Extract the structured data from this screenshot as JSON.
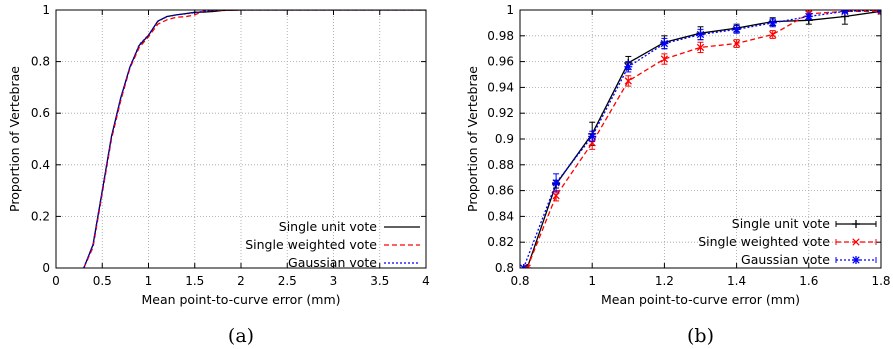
{
  "colors": {
    "unit": "#000000",
    "weighted": "#ff0000",
    "gaussian": "#0000ff",
    "grid": "#a0a0a0"
  },
  "chart_data": [
    {
      "type": "line",
      "caption": "(a)",
      "xlabel": "Mean point-to-curve error (mm)",
      "ylabel": "Proportion of Vertebrae",
      "xlim": [
        0,
        4
      ],
      "ylim": [
        0,
        1
      ],
      "xticks": [
        0,
        0.5,
        1,
        1.5,
        2,
        2.5,
        3,
        3.5,
        4
      ],
      "xtick_labels": [
        "0",
        "0.5",
        "1",
        "1.5",
        "2",
        "2.5",
        "3",
        "3.5",
        "4"
      ],
      "yticks": [
        0,
        0.2,
        0.4,
        0.6,
        0.8,
        1
      ],
      "ytick_labels": [
        "0",
        "0.2",
        "0.4",
        "0.6",
        "0.8",
        "1"
      ],
      "grid": true,
      "legend_position": "bottom-right",
      "series": [
        {
          "name": "Single unit vote",
          "color": "#000000",
          "dash": "solid",
          "x": [
            0.3,
            0.4,
            0.5,
            0.6,
            0.7,
            0.8,
            0.9,
            1.0,
            1.1,
            1.2,
            1.3,
            1.4,
            1.5,
            1.6,
            1.7,
            1.8,
            2.0,
            4.0
          ],
          "y": [
            0.0,
            0.09,
            0.3,
            0.51,
            0.66,
            0.78,
            0.863,
            0.902,
            0.957,
            0.975,
            0.981,
            0.986,
            0.991,
            0.992,
            0.994,
            0.998,
            1.0,
            1.0
          ]
        },
        {
          "name": "Single weighted vote",
          "color": "#ff0000",
          "dash": "dashed",
          "x": [
            0.3,
            0.4,
            0.5,
            0.6,
            0.7,
            0.8,
            0.9,
            1.0,
            1.1,
            1.2,
            1.3,
            1.4,
            1.5,
            1.6,
            1.7,
            1.8,
            2.0,
            4.0
          ],
          "y": [
            0.0,
            0.08,
            0.29,
            0.5,
            0.65,
            0.775,
            0.855,
            0.896,
            0.945,
            0.962,
            0.972,
            0.974,
            0.981,
            0.997,
            0.999,
            0.999,
            1.0,
            1.0
          ]
        },
        {
          "name": "Gaussian vote",
          "color": "#0000ff",
          "dash": "dotted",
          "x": [
            0.3,
            0.4,
            0.5,
            0.6,
            0.7,
            0.8,
            0.9,
            1.0,
            1.1,
            1.2,
            1.3,
            1.4,
            1.5,
            1.6,
            1.7,
            1.8,
            2.0,
            4.0
          ],
          "y": [
            0.0,
            0.09,
            0.3,
            0.51,
            0.66,
            0.78,
            0.866,
            0.903,
            0.956,
            0.974,
            0.981,
            0.985,
            0.99,
            0.995,
            0.999,
            1.0,
            1.0,
            1.0
          ]
        }
      ]
    },
    {
      "type": "line",
      "caption": "(b)",
      "xlabel": "Mean point-to-curve error (mm)",
      "ylabel": "Proportion of Vertebrae",
      "xlim": [
        0.8,
        1.8
      ],
      "ylim": [
        0.8,
        1.0
      ],
      "xticks": [
        0.8,
        1.0,
        1.2,
        1.4,
        1.6,
        1.8
      ],
      "xtick_labels": [
        "0.8",
        "1",
        "1.2",
        "1.4",
        "1.6",
        "1.8"
      ],
      "yticks": [
        0.8,
        0.82,
        0.84,
        0.86,
        0.88,
        0.9,
        0.92,
        0.94,
        0.96,
        0.98,
        1.0
      ],
      "ytick_labels": [
        "0.8",
        "0.82",
        "0.84",
        "0.86",
        "0.88",
        "0.9",
        "0.92",
        "0.94",
        "0.96",
        "0.98",
        "1"
      ],
      "grid": true,
      "legend_position": "bottom-right",
      "series": [
        {
          "name": "Single unit vote",
          "color": "#000000",
          "dash": "solid",
          "marker": "+",
          "x": [
            0.82,
            0.9,
            1.0,
            1.1,
            1.2,
            1.3,
            1.4,
            1.5,
            1.6,
            1.7,
            1.8
          ],
          "y": [
            0.8,
            0.865,
            0.904,
            0.959,
            0.975,
            0.982,
            0.986,
            0.991,
            0.992,
            0.995,
            0.999
          ],
          "err": [
            0,
            0.003,
            0.009,
            0.005,
            0.005,
            0.005,
            0.003,
            0.003,
            0.003,
            0.006,
            0.002
          ]
        },
        {
          "name": "Single weighted vote",
          "color": "#ff0000",
          "dash": "dashed",
          "marker": "x",
          "x": [
            0.82,
            0.9,
            1.0,
            1.1,
            1.2,
            1.3,
            1.4,
            1.5,
            1.6,
            1.7,
            1.8
          ],
          "y": [
            0.8,
            0.856,
            0.897,
            0.945,
            0.962,
            0.971,
            0.974,
            0.981,
            0.997,
            0.999,
            0.999
          ],
          "err": [
            0,
            0.004,
            0.005,
            0.004,
            0.004,
            0.004,
            0.003,
            0.003,
            0.002,
            0.001,
            0.001
          ]
        },
        {
          "name": "Gaussian vote",
          "color": "#0000ff",
          "dash": "dotted",
          "marker": "*",
          "x": [
            0.81,
            0.9,
            1.0,
            1.1,
            1.2,
            1.3,
            1.4,
            1.5,
            1.6,
            1.7,
            1.8
          ],
          "y": [
            0.8,
            0.866,
            0.902,
            0.956,
            0.974,
            0.981,
            0.985,
            0.99,
            0.995,
            0.999,
            1.0
          ],
          "err": [
            0,
            0.007,
            0.004,
            0.004,
            0.004,
            0.004,
            0.003,
            0.003,
            0.002,
            0.001,
            0.001
          ]
        }
      ]
    }
  ]
}
